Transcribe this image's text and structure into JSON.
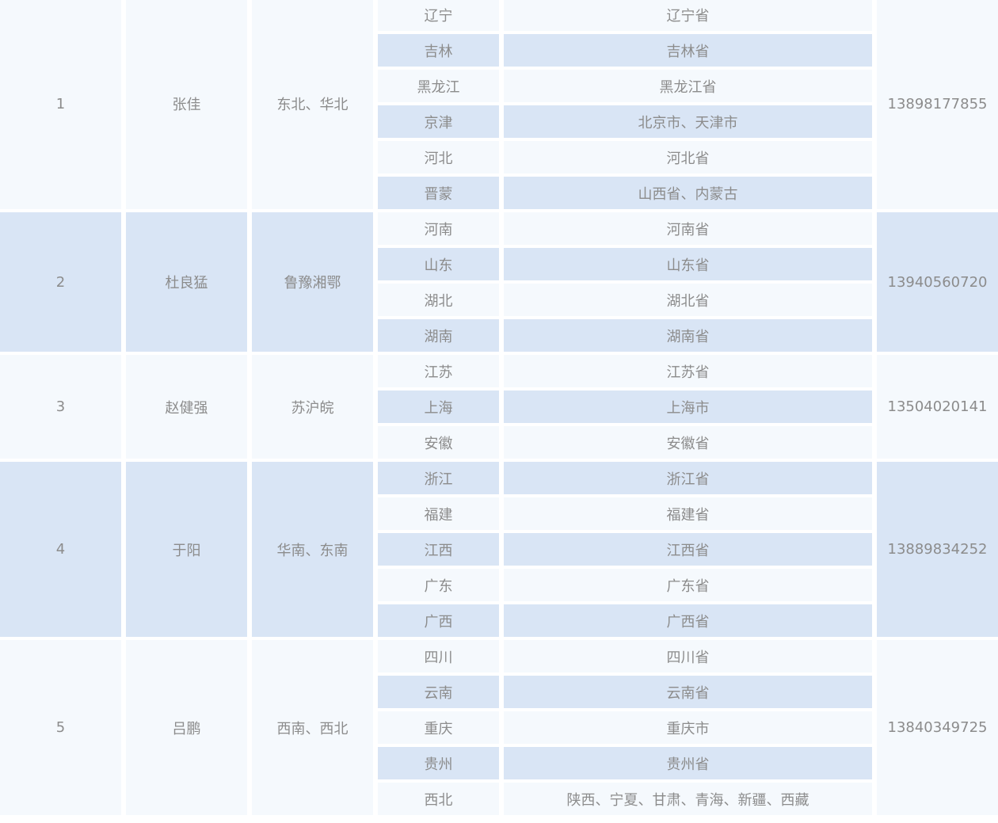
{
  "colors": {
    "light_row": "#f5f9fd",
    "blue_row": "#d9e5f5",
    "text": "#8c8c8c"
  },
  "groups": [
    {
      "index": "1",
      "name": "张佳",
      "region": "东北、华北",
      "phone": "13898177855",
      "areas": [
        {
          "short": "辽宁",
          "full": "辽宁省"
        },
        {
          "short": "吉林",
          "full": "吉林省"
        },
        {
          "short": "黑龙江",
          "full": "黑龙江省"
        },
        {
          "short": "京津",
          "full": "北京市、天津市"
        },
        {
          "short": "河北",
          "full": "河北省"
        },
        {
          "short": "晋蒙",
          "full": "山西省、内蒙古"
        }
      ]
    },
    {
      "index": "2",
      "name": "杜良猛",
      "region": "鲁豫湘鄂",
      "phone": "13940560720",
      "areas": [
        {
          "short": "河南",
          "full": "河南省"
        },
        {
          "short": "山东",
          "full": "山东省"
        },
        {
          "short": "湖北",
          "full": "湖北省"
        },
        {
          "short": "湖南",
          "full": "湖南省"
        }
      ]
    },
    {
      "index": "3",
      "name": "赵健强",
      "region": "苏沪皖",
      "phone": "13504020141",
      "areas": [
        {
          "short": "江苏",
          "full": "江苏省"
        },
        {
          "short": "上海",
          "full": "上海市"
        },
        {
          "short": "安徽",
          "full": "安徽省"
        }
      ]
    },
    {
      "index": "4",
      "name": "于阳",
      "region": "华南、东南",
      "phone": "13889834252",
      "areas": [
        {
          "short": "浙江",
          "full": "浙江省"
        },
        {
          "short": "福建",
          "full": "福建省"
        },
        {
          "short": "江西",
          "full": "江西省"
        },
        {
          "short": "广东",
          "full": "广东省"
        },
        {
          "short": "广西",
          "full": "广西省"
        }
      ]
    },
    {
      "index": "5",
      "name": "吕鹏",
      "region": "西南、西北",
      "phone": "13840349725",
      "areas": [
        {
          "short": "四川",
          "full": "四川省"
        },
        {
          "short": "云南",
          "full": "云南省"
        },
        {
          "short": "重庆",
          "full": "重庆市"
        },
        {
          "short": "贵州",
          "full": "贵州省"
        },
        {
          "short": "西北",
          "full": "陕西、宁夏、甘肃、青海、新疆、西藏"
        }
      ]
    }
  ]
}
